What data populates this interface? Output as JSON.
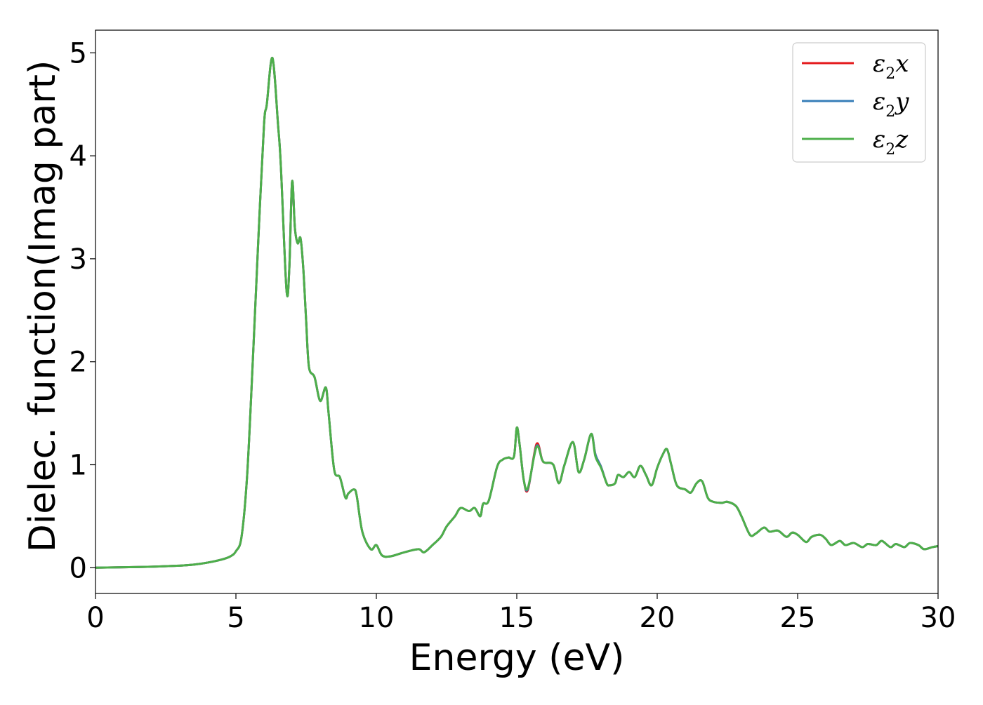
{
  "chart_data": {
    "type": "line",
    "title": "",
    "xlabel": "Energy (eV)",
    "ylabel": "Dielec. function(Imag part)",
    "xlim": [
      0,
      30
    ],
    "ylim": [
      -0.25,
      5.22
    ],
    "xticks": [
      0,
      5,
      10,
      15,
      20,
      25,
      30
    ],
    "yticks": [
      0,
      1,
      2,
      3,
      4,
      5
    ],
    "grid": false,
    "legend_position": "top-right",
    "series": [
      {
        "name": "ε2x",
        "legend_base": "ε",
        "legend_sub": "2",
        "legend_tail": "x",
        "color": "#e41a1c",
        "x": [
          0,
          1,
          2,
          3,
          3.5,
          4,
          4.5,
          4.8,
          5.0,
          5.2,
          5.4,
          5.6,
          5.8,
          6.0,
          6.1,
          6.3,
          6.5,
          6.6,
          6.8,
          6.9,
          7.0,
          7.1,
          7.2,
          7.3,
          7.4,
          7.5,
          7.6,
          7.8,
          8.0,
          8.2,
          8.3,
          8.5,
          8.7,
          8.9,
          9.0,
          9.2,
          9.3,
          9.5,
          9.8,
          10.0,
          10.2,
          10.5,
          11.0,
          11.5,
          11.7,
          12.0,
          12.3,
          12.5,
          12.8,
          13.0,
          13.3,
          13.5,
          13.7,
          13.8,
          14.0,
          14.3,
          14.5,
          14.7,
          14.9,
          15.0,
          15.1,
          15.25,
          15.4,
          15.7,
          15.9,
          16.0,
          16.3,
          16.5,
          16.7,
          17.0,
          17.2,
          17.4,
          17.65,
          17.8,
          18.0,
          18.2,
          18.3,
          18.5,
          18.6,
          18.8,
          19.0,
          19.2,
          19.4,
          19.6,
          19.8,
          20.0,
          20.2,
          20.35,
          20.5,
          20.7,
          21.0,
          21.2,
          21.4,
          21.6,
          21.8,
          22.0,
          22.3,
          22.5,
          22.8,
          23.0,
          23.3,
          23.5,
          23.8,
          24.0,
          24.3,
          24.6,
          24.8,
          25.0,
          25.3,
          25.5,
          25.8,
          26.0,
          26.2,
          26.5,
          26.7,
          27.0,
          27.3,
          27.5,
          27.8,
          28.0,
          28.3,
          28.5,
          28.8,
          29.0,
          29.3,
          29.5,
          29.8,
          30.0
        ],
        "y": [
          0.0,
          0.005,
          0.01,
          0.02,
          0.03,
          0.05,
          0.08,
          0.11,
          0.16,
          0.3,
          0.9,
          2.0,
          3.2,
          4.3,
          4.5,
          4.95,
          4.3,
          3.9,
          2.7,
          2.9,
          3.75,
          3.3,
          3.15,
          3.2,
          2.9,
          2.4,
          1.95,
          1.85,
          1.62,
          1.75,
          1.5,
          0.95,
          0.88,
          0.68,
          0.72,
          0.76,
          0.7,
          0.35,
          0.18,
          0.22,
          0.12,
          0.11,
          0.15,
          0.18,
          0.15,
          0.22,
          0.3,
          0.4,
          0.5,
          0.58,
          0.55,
          0.58,
          0.5,
          0.62,
          0.65,
          0.98,
          1.05,
          1.07,
          1.08,
          1.36,
          1.2,
          0.85,
          0.76,
          1.2,
          1.05,
          1.02,
          1.0,
          0.82,
          1.0,
          1.22,
          0.93,
          1.05,
          1.3,
          1.1,
          0.98,
          0.82,
          0.8,
          0.82,
          0.9,
          0.88,
          0.93,
          0.88,
          0.99,
          0.9,
          0.8,
          0.97,
          1.1,
          1.15,
          1.0,
          0.8,
          0.76,
          0.73,
          0.82,
          0.84,
          0.68,
          0.64,
          0.63,
          0.64,
          0.6,
          0.5,
          0.32,
          0.33,
          0.39,
          0.35,
          0.36,
          0.3,
          0.34,
          0.32,
          0.25,
          0.3,
          0.32,
          0.28,
          0.22,
          0.26,
          0.22,
          0.24,
          0.2,
          0.23,
          0.22,
          0.26,
          0.2,
          0.23,
          0.2,
          0.24,
          0.22,
          0.18,
          0.2,
          0.21
        ]
      },
      {
        "name": "ε2y",
        "legend_base": "ε",
        "legend_sub": "2",
        "legend_tail": "y",
        "color": "#377eb8",
        "x": [
          0,
          1,
          2,
          3,
          3.5,
          4,
          4.5,
          4.8,
          5.0,
          5.2,
          5.4,
          5.6,
          5.8,
          6.0,
          6.1,
          6.3,
          6.5,
          6.6,
          6.8,
          6.9,
          7.0,
          7.1,
          7.2,
          7.3,
          7.4,
          7.5,
          7.6,
          7.8,
          8.0,
          8.2,
          8.3,
          8.5,
          8.7,
          8.9,
          9.0,
          9.2,
          9.3,
          9.5,
          9.8,
          10.0,
          10.2,
          10.5,
          11.0,
          11.5,
          11.7,
          12.0,
          12.3,
          12.5,
          12.8,
          13.0,
          13.3,
          13.5,
          13.7,
          13.8,
          14.0,
          14.3,
          14.5,
          14.7,
          14.9,
          15.0,
          15.1,
          15.25,
          15.4,
          15.7,
          15.9,
          16.0,
          16.3,
          16.5,
          16.7,
          17.0,
          17.2,
          17.4,
          17.65,
          17.8,
          18.0,
          18.2,
          18.3,
          18.5,
          18.6,
          18.8,
          19.0,
          19.2,
          19.4,
          19.6,
          19.8,
          20.0,
          20.2,
          20.35,
          20.5,
          20.7,
          21.0,
          21.2,
          21.4,
          21.6,
          21.8,
          22.0,
          22.3,
          22.5,
          22.8,
          23.0,
          23.3,
          23.5,
          23.8,
          24.0,
          24.3,
          24.6,
          24.8,
          25.0,
          25.3,
          25.5,
          25.8,
          26.0,
          26.2,
          26.5,
          26.7,
          27.0,
          27.3,
          27.5,
          27.8,
          28.0,
          28.3,
          28.5,
          28.8,
          29.0,
          29.3,
          29.5,
          29.8,
          30.0
        ],
        "y": [
          0.0,
          0.005,
          0.01,
          0.02,
          0.03,
          0.05,
          0.08,
          0.11,
          0.16,
          0.3,
          0.9,
          2.0,
          3.2,
          4.3,
          4.5,
          4.95,
          4.3,
          3.9,
          2.7,
          2.9,
          3.75,
          3.3,
          3.15,
          3.2,
          2.9,
          2.4,
          1.95,
          1.85,
          1.62,
          1.75,
          1.5,
          0.95,
          0.88,
          0.68,
          0.72,
          0.76,
          0.7,
          0.35,
          0.18,
          0.22,
          0.12,
          0.11,
          0.15,
          0.18,
          0.15,
          0.22,
          0.3,
          0.4,
          0.5,
          0.58,
          0.55,
          0.58,
          0.5,
          0.62,
          0.65,
          0.98,
          1.05,
          1.07,
          1.08,
          1.36,
          1.2,
          0.85,
          0.77,
          1.18,
          1.05,
          1.02,
          1.0,
          0.82,
          1.0,
          1.22,
          0.93,
          1.05,
          1.3,
          1.1,
          0.98,
          0.82,
          0.8,
          0.82,
          0.9,
          0.88,
          0.93,
          0.88,
          0.99,
          0.9,
          0.8,
          0.97,
          1.1,
          1.15,
          1.0,
          0.8,
          0.76,
          0.73,
          0.82,
          0.84,
          0.68,
          0.64,
          0.63,
          0.64,
          0.6,
          0.5,
          0.32,
          0.33,
          0.39,
          0.35,
          0.36,
          0.3,
          0.34,
          0.32,
          0.25,
          0.3,
          0.32,
          0.28,
          0.22,
          0.26,
          0.22,
          0.24,
          0.2,
          0.23,
          0.22,
          0.26,
          0.2,
          0.23,
          0.2,
          0.24,
          0.22,
          0.18,
          0.2,
          0.21
        ]
      },
      {
        "name": "ε2z",
        "legend_base": "ε",
        "legend_sub": "2",
        "legend_tail": "z",
        "color": "#4daf4a",
        "x": [
          0,
          1,
          2,
          3,
          3.5,
          4,
          4.5,
          4.8,
          5.0,
          5.2,
          5.4,
          5.6,
          5.8,
          6.0,
          6.1,
          6.3,
          6.5,
          6.6,
          6.8,
          6.9,
          7.0,
          7.1,
          7.2,
          7.3,
          7.4,
          7.5,
          7.6,
          7.8,
          8.0,
          8.2,
          8.3,
          8.5,
          8.7,
          8.9,
          9.0,
          9.2,
          9.3,
          9.5,
          9.8,
          10.0,
          10.2,
          10.5,
          11.0,
          11.5,
          11.7,
          12.0,
          12.3,
          12.5,
          12.8,
          13.0,
          13.3,
          13.5,
          13.7,
          13.8,
          14.0,
          14.3,
          14.5,
          14.7,
          14.9,
          15.0,
          15.1,
          15.25,
          15.4,
          15.7,
          15.9,
          16.0,
          16.3,
          16.5,
          16.7,
          17.0,
          17.2,
          17.4,
          17.65,
          17.8,
          18.0,
          18.2,
          18.3,
          18.5,
          18.6,
          18.8,
          19.0,
          19.2,
          19.4,
          19.6,
          19.8,
          20.0,
          20.2,
          20.35,
          20.5,
          20.7,
          21.0,
          21.2,
          21.4,
          21.6,
          21.8,
          22.0,
          22.3,
          22.5,
          22.8,
          23.0,
          23.3,
          23.5,
          23.8,
          24.0,
          24.3,
          24.6,
          24.8,
          25.0,
          25.3,
          25.5,
          25.8,
          26.0,
          26.2,
          26.5,
          26.7,
          27.0,
          27.3,
          27.5,
          27.8,
          28.0,
          28.3,
          28.5,
          28.8,
          29.0,
          29.3,
          29.5,
          29.8,
          30.0
        ],
        "y": [
          0.0,
          0.005,
          0.01,
          0.02,
          0.03,
          0.05,
          0.08,
          0.11,
          0.16,
          0.3,
          0.9,
          2.0,
          3.2,
          4.3,
          4.5,
          4.95,
          4.3,
          3.9,
          2.7,
          2.9,
          3.75,
          3.3,
          3.15,
          3.2,
          2.9,
          2.4,
          1.95,
          1.85,
          1.62,
          1.75,
          1.5,
          0.95,
          0.88,
          0.68,
          0.72,
          0.76,
          0.7,
          0.35,
          0.18,
          0.22,
          0.12,
          0.11,
          0.15,
          0.18,
          0.15,
          0.22,
          0.3,
          0.4,
          0.5,
          0.58,
          0.55,
          0.58,
          0.5,
          0.62,
          0.65,
          0.98,
          1.05,
          1.07,
          1.08,
          1.36,
          1.2,
          0.85,
          0.78,
          1.17,
          1.05,
          1.02,
          1.0,
          0.82,
          1.0,
          1.22,
          0.93,
          1.05,
          1.3,
          1.08,
          0.97,
          0.82,
          0.8,
          0.82,
          0.9,
          0.88,
          0.93,
          0.88,
          0.99,
          0.9,
          0.8,
          0.97,
          1.1,
          1.15,
          1.0,
          0.8,
          0.76,
          0.73,
          0.82,
          0.84,
          0.68,
          0.64,
          0.63,
          0.64,
          0.6,
          0.5,
          0.32,
          0.33,
          0.39,
          0.35,
          0.36,
          0.3,
          0.34,
          0.32,
          0.25,
          0.3,
          0.32,
          0.28,
          0.22,
          0.26,
          0.22,
          0.24,
          0.2,
          0.23,
          0.22,
          0.26,
          0.2,
          0.23,
          0.2,
          0.24,
          0.22,
          0.18,
          0.2,
          0.21
        ]
      }
    ]
  }
}
